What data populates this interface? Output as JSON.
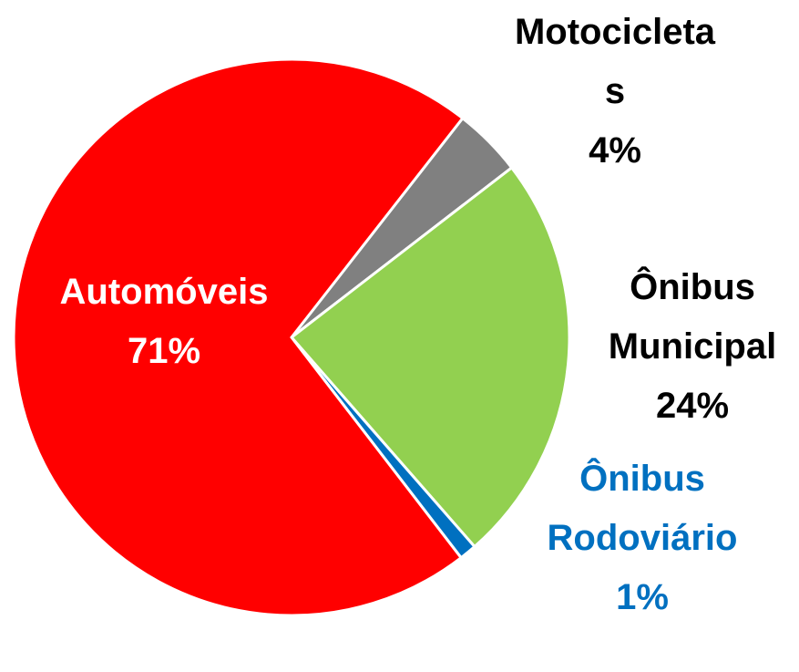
{
  "chart_data": {
    "type": "pie",
    "categories": [
      "Motocicletas",
      "Ônibus Municipal",
      "Ônibus Rodoviário",
      "Automóveis"
    ],
    "values": [
      4,
      24,
      1,
      71
    ],
    "value_labels": [
      "4%",
      "24%",
      "1%",
      "71%"
    ],
    "colors": [
      "#808080",
      "#92d050",
      "#0070c0",
      "#ff0000"
    ]
  }
}
